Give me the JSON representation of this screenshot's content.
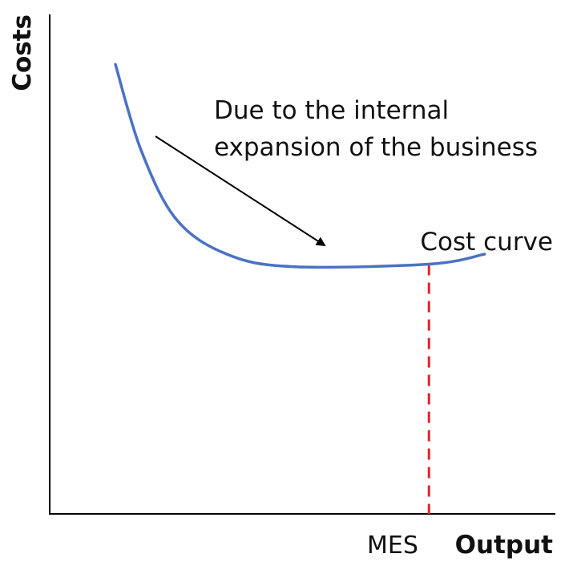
{
  "chart_data": {
    "type": "line",
    "title": "",
    "xlabel": "Output",
    "ylabel": "Costs",
    "x_tick_labels": [
      "MES"
    ],
    "series": [
      {
        "name": "Cost curve",
        "color": "#4a72c4",
        "points": [
          [
            0.13,
            0.9
          ],
          [
            0.18,
            0.73
          ],
          [
            0.25,
            0.59
          ],
          [
            0.35,
            0.52
          ],
          [
            0.48,
            0.495
          ],
          [
            0.75,
            0.5
          ],
          [
            0.86,
            0.52
          ]
        ]
      }
    ],
    "reference_lines": [
      {
        "axis": "x",
        "label": "MES",
        "value": 0.75,
        "style": "dashed",
        "color": "#e0232a"
      }
    ],
    "annotations": [
      {
        "lines": [
          "Due to the internal",
          "expansion of the business"
        ],
        "arrow": true,
        "arrow_color": "#000000"
      }
    ],
    "ylim": [
      0,
      1
    ],
    "xlim": [
      0,
      1
    ],
    "grid": false,
    "legend": "none"
  }
}
